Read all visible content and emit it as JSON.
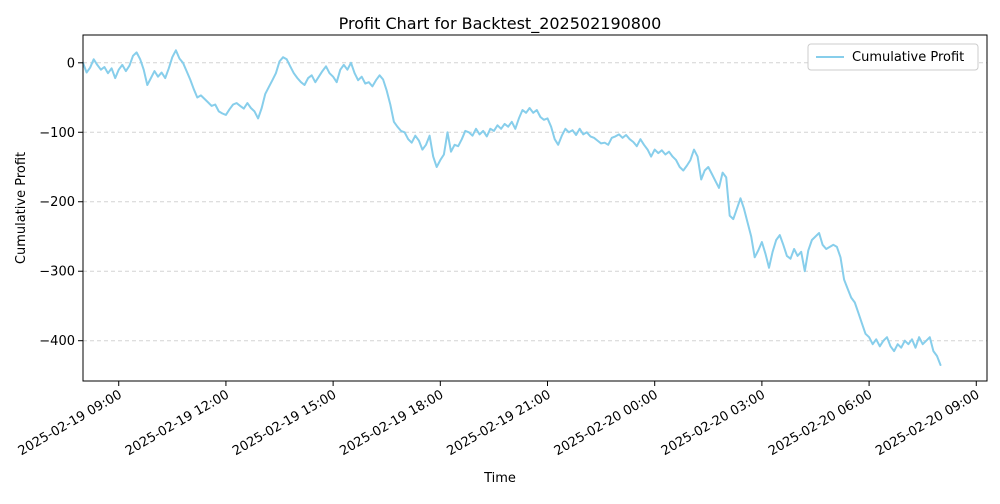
{
  "chart_data": {
    "type": "line",
    "title": "Profit Chart for Backtest_202502190800",
    "xlabel": "Time",
    "ylabel": "Cumulative Profit",
    "legend": {
      "position": "top-right",
      "entries": [
        "Cumulative Profit"
      ]
    },
    "grid": {
      "y": true,
      "x": false,
      "style": "dashed"
    },
    "colors": {
      "line": "#87ceeb",
      "grid": "#d3d3d3",
      "axis": "#000000"
    },
    "x_axis": {
      "unit": "hours since 2025-02-19 09:00",
      "range": [
        -1.0,
        24.3
      ],
      "ticks": [
        {
          "value": 0,
          "label": "2025-02-19 09:00"
        },
        {
          "value": 3,
          "label": "2025-02-19 12:00"
        },
        {
          "value": 6,
          "label": "2025-02-19 15:00"
        },
        {
          "value": 9,
          "label": "2025-02-19 18:00"
        },
        {
          "value": 12,
          "label": "2025-02-19 21:00"
        },
        {
          "value": 15,
          "label": "2025-02-20 00:00"
        },
        {
          "value": 18,
          "label": "2025-02-20 03:00"
        },
        {
          "value": 21,
          "label": "2025-02-20 06:00"
        },
        {
          "value": 24,
          "label": "2025-02-20 09:00"
        }
      ]
    },
    "y_axis": {
      "range": [
        -458,
        40
      ],
      "ticks": [
        {
          "value": 0,
          "label": "0"
        },
        {
          "value": -100,
          "label": "−100"
        },
        {
          "value": -200,
          "label": "−200"
        },
        {
          "value": -300,
          "label": "−300"
        },
        {
          "value": -400,
          "label": "−400"
        }
      ]
    },
    "series": [
      {
        "name": "Cumulative Profit",
        "points": [
          [
            -1.0,
            0
          ],
          [
            -0.9,
            -14
          ],
          [
            -0.8,
            -7
          ],
          [
            -0.7,
            5
          ],
          [
            -0.6,
            -3
          ],
          [
            -0.5,
            -10
          ],
          [
            -0.4,
            -6
          ],
          [
            -0.3,
            -15
          ],
          [
            -0.2,
            -8
          ],
          [
            -0.1,
            -22
          ],
          [
            0.0,
            -10
          ],
          [
            0.1,
            -3
          ],
          [
            0.2,
            -12
          ],
          [
            0.3,
            -4
          ],
          [
            0.4,
            10
          ],
          [
            0.5,
            15
          ],
          [
            0.6,
            5
          ],
          [
            0.7,
            -10
          ],
          [
            0.8,
            -32
          ],
          [
            0.9,
            -22
          ],
          [
            1.0,
            -12
          ],
          [
            1.1,
            -20
          ],
          [
            1.2,
            -14
          ],
          [
            1.3,
            -22
          ],
          [
            1.4,
            -8
          ],
          [
            1.5,
            8
          ],
          [
            1.6,
            18
          ],
          [
            1.7,
            6
          ],
          [
            1.8,
            0
          ],
          [
            1.9,
            -12
          ],
          [
            2.0,
            -24
          ],
          [
            2.1,
            -38
          ],
          [
            2.2,
            -50
          ],
          [
            2.3,
            -47
          ],
          [
            2.4,
            -52
          ],
          [
            2.5,
            -57
          ],
          [
            2.6,
            -62
          ],
          [
            2.7,
            -60
          ],
          [
            2.8,
            -70
          ],
          [
            2.9,
            -73
          ],
          [
            3.0,
            -75
          ],
          [
            3.1,
            -67
          ],
          [
            3.2,
            -60
          ],
          [
            3.3,
            -58
          ],
          [
            3.4,
            -62
          ],
          [
            3.5,
            -66
          ],
          [
            3.6,
            -58
          ],
          [
            3.7,
            -65
          ],
          [
            3.8,
            -70
          ],
          [
            3.9,
            -80
          ],
          [
            4.0,
            -65
          ],
          [
            4.1,
            -45
          ],
          [
            4.2,
            -35
          ],
          [
            4.3,
            -25
          ],
          [
            4.4,
            -15
          ],
          [
            4.5,
            2
          ],
          [
            4.6,
            8
          ],
          [
            4.7,
            5
          ],
          [
            4.8,
            -5
          ],
          [
            4.9,
            -15
          ],
          [
            5.0,
            -22
          ],
          [
            5.1,
            -28
          ],
          [
            5.2,
            -32
          ],
          [
            5.3,
            -22
          ],
          [
            5.4,
            -18
          ],
          [
            5.5,
            -28
          ],
          [
            5.6,
            -20
          ],
          [
            5.7,
            -12
          ],
          [
            5.8,
            -5
          ],
          [
            5.9,
            -15
          ],
          [
            6.0,
            -20
          ],
          [
            6.1,
            -28
          ],
          [
            6.2,
            -10
          ],
          [
            6.3,
            -3
          ],
          [
            6.4,
            -10
          ],
          [
            6.5,
            0
          ],
          [
            6.6,
            -15
          ],
          [
            6.7,
            -25
          ],
          [
            6.8,
            -20
          ],
          [
            6.9,
            -30
          ],
          [
            7.0,
            -28
          ],
          [
            7.1,
            -34
          ],
          [
            7.2,
            -25
          ],
          [
            7.3,
            -18
          ],
          [
            7.4,
            -24
          ],
          [
            7.5,
            -40
          ],
          [
            7.6,
            -60
          ],
          [
            7.7,
            -85
          ],
          [
            7.8,
            -92
          ],
          [
            7.9,
            -98
          ],
          [
            8.0,
            -100
          ],
          [
            8.1,
            -110
          ],
          [
            8.2,
            -115
          ],
          [
            8.3,
            -105
          ],
          [
            8.4,
            -112
          ],
          [
            8.5,
            -125
          ],
          [
            8.6,
            -118
          ],
          [
            8.7,
            -105
          ],
          [
            8.8,
            -135
          ],
          [
            8.9,
            -150
          ],
          [
            9.0,
            -140
          ],
          [
            9.1,
            -132
          ],
          [
            9.2,
            -100
          ],
          [
            9.3,
            -128
          ],
          [
            9.4,
            -118
          ],
          [
            9.5,
            -120
          ],
          [
            9.6,
            -110
          ],
          [
            9.7,
            -98
          ],
          [
            9.8,
            -100
          ],
          [
            9.9,
            -105
          ],
          [
            10.0,
            -95
          ],
          [
            10.1,
            -103
          ],
          [
            10.2,
            -98
          ],
          [
            10.3,
            -106
          ],
          [
            10.4,
            -95
          ],
          [
            10.5,
            -98
          ],
          [
            10.6,
            -90
          ],
          [
            10.7,
            -95
          ],
          [
            10.8,
            -88
          ],
          [
            10.9,
            -92
          ],
          [
            11.0,
            -85
          ],
          [
            11.1,
            -95
          ],
          [
            11.2,
            -80
          ],
          [
            11.3,
            -68
          ],
          [
            11.4,
            -72
          ],
          [
            11.5,
            -65
          ],
          [
            11.6,
            -72
          ],
          [
            11.7,
            -68
          ],
          [
            11.8,
            -78
          ],
          [
            11.9,
            -82
          ],
          [
            12.0,
            -80
          ],
          [
            12.1,
            -92
          ],
          [
            12.2,
            -110
          ],
          [
            12.3,
            -118
          ],
          [
            12.4,
            -105
          ],
          [
            12.5,
            -95
          ],
          [
            12.6,
            -100
          ],
          [
            12.7,
            -97
          ],
          [
            12.8,
            -104
          ],
          [
            12.9,
            -95
          ],
          [
            13.0,
            -103
          ],
          [
            13.1,
            -100
          ],
          [
            13.2,
            -106
          ],
          [
            13.3,
            -108
          ],
          [
            13.4,
            -112
          ],
          [
            13.5,
            -116
          ],
          [
            13.6,
            -115
          ],
          [
            13.7,
            -118
          ],
          [
            13.8,
            -108
          ],
          [
            13.9,
            -106
          ],
          [
            14.0,
            -103
          ],
          [
            14.1,
            -108
          ],
          [
            14.2,
            -104
          ],
          [
            14.3,
            -110
          ],
          [
            14.4,
            -114
          ],
          [
            14.5,
            -120
          ],
          [
            14.6,
            -110
          ],
          [
            14.7,
            -118
          ],
          [
            14.8,
            -125
          ],
          [
            14.9,
            -135
          ],
          [
            15.0,
            -125
          ],
          [
            15.1,
            -130
          ],
          [
            15.2,
            -126
          ],
          [
            15.3,
            -132
          ],
          [
            15.4,
            -128
          ],
          [
            15.5,
            -135
          ],
          [
            15.6,
            -140
          ],
          [
            15.7,
            -150
          ],
          [
            15.8,
            -155
          ],
          [
            15.9,
            -148
          ],
          [
            16.0,
            -140
          ],
          [
            16.1,
            -125
          ],
          [
            16.2,
            -135
          ],
          [
            16.3,
            -168
          ],
          [
            16.4,
            -155
          ],
          [
            16.5,
            -150
          ],
          [
            16.6,
            -160
          ],
          [
            16.7,
            -170
          ],
          [
            16.8,
            -180
          ],
          [
            16.9,
            -158
          ],
          [
            17.0,
            -165
          ],
          [
            17.1,
            -220
          ],
          [
            17.2,
            -225
          ],
          [
            17.3,
            -210
          ],
          [
            17.4,
            -195
          ],
          [
            17.5,
            -210
          ],
          [
            17.6,
            -230
          ],
          [
            17.7,
            -250
          ],
          [
            17.8,
            -280
          ],
          [
            17.9,
            -270
          ],
          [
            18.0,
            -258
          ],
          [
            18.1,
            -275
          ],
          [
            18.2,
            -295
          ],
          [
            18.3,
            -272
          ],
          [
            18.4,
            -255
          ],
          [
            18.5,
            -248
          ],
          [
            18.6,
            -262
          ],
          [
            18.7,
            -278
          ],
          [
            18.8,
            -282
          ],
          [
            18.9,
            -268
          ],
          [
            19.0,
            -278
          ],
          [
            19.1,
            -272
          ],
          [
            19.2,
            -300
          ],
          [
            19.3,
            -270
          ],
          [
            19.4,
            -255
          ],
          [
            19.5,
            -250
          ],
          [
            19.6,
            -245
          ],
          [
            19.7,
            -262
          ],
          [
            19.8,
            -268
          ],
          [
            19.9,
            -265
          ],
          [
            20.0,
            -262
          ],
          [
            20.1,
            -265
          ],
          [
            20.2,
            -280
          ],
          [
            20.3,
            -312
          ],
          [
            20.4,
            -325
          ],
          [
            20.5,
            -338
          ],
          [
            20.6,
            -345
          ],
          [
            20.7,
            -360
          ],
          [
            20.8,
            -375
          ],
          [
            20.9,
            -390
          ],
          [
            21.0,
            -395
          ],
          [
            21.1,
            -405
          ],
          [
            21.2,
            -398
          ],
          [
            21.3,
            -408
          ],
          [
            21.4,
            -400
          ],
          [
            21.5,
            -395
          ],
          [
            21.6,
            -408
          ],
          [
            21.7,
            -415
          ],
          [
            21.8,
            -405
          ],
          [
            21.9,
            -410
          ],
          [
            22.0,
            -400
          ],
          [
            22.1,
            -405
          ],
          [
            22.2,
            -398
          ],
          [
            22.3,
            -410
          ],
          [
            22.4,
            -395
          ],
          [
            22.5,
            -405
          ],
          [
            22.6,
            -400
          ],
          [
            22.7,
            -395
          ],
          [
            22.8,
            -415
          ],
          [
            22.9,
            -422
          ],
          [
            23.0,
            -435
          ]
        ]
      }
    ]
  }
}
